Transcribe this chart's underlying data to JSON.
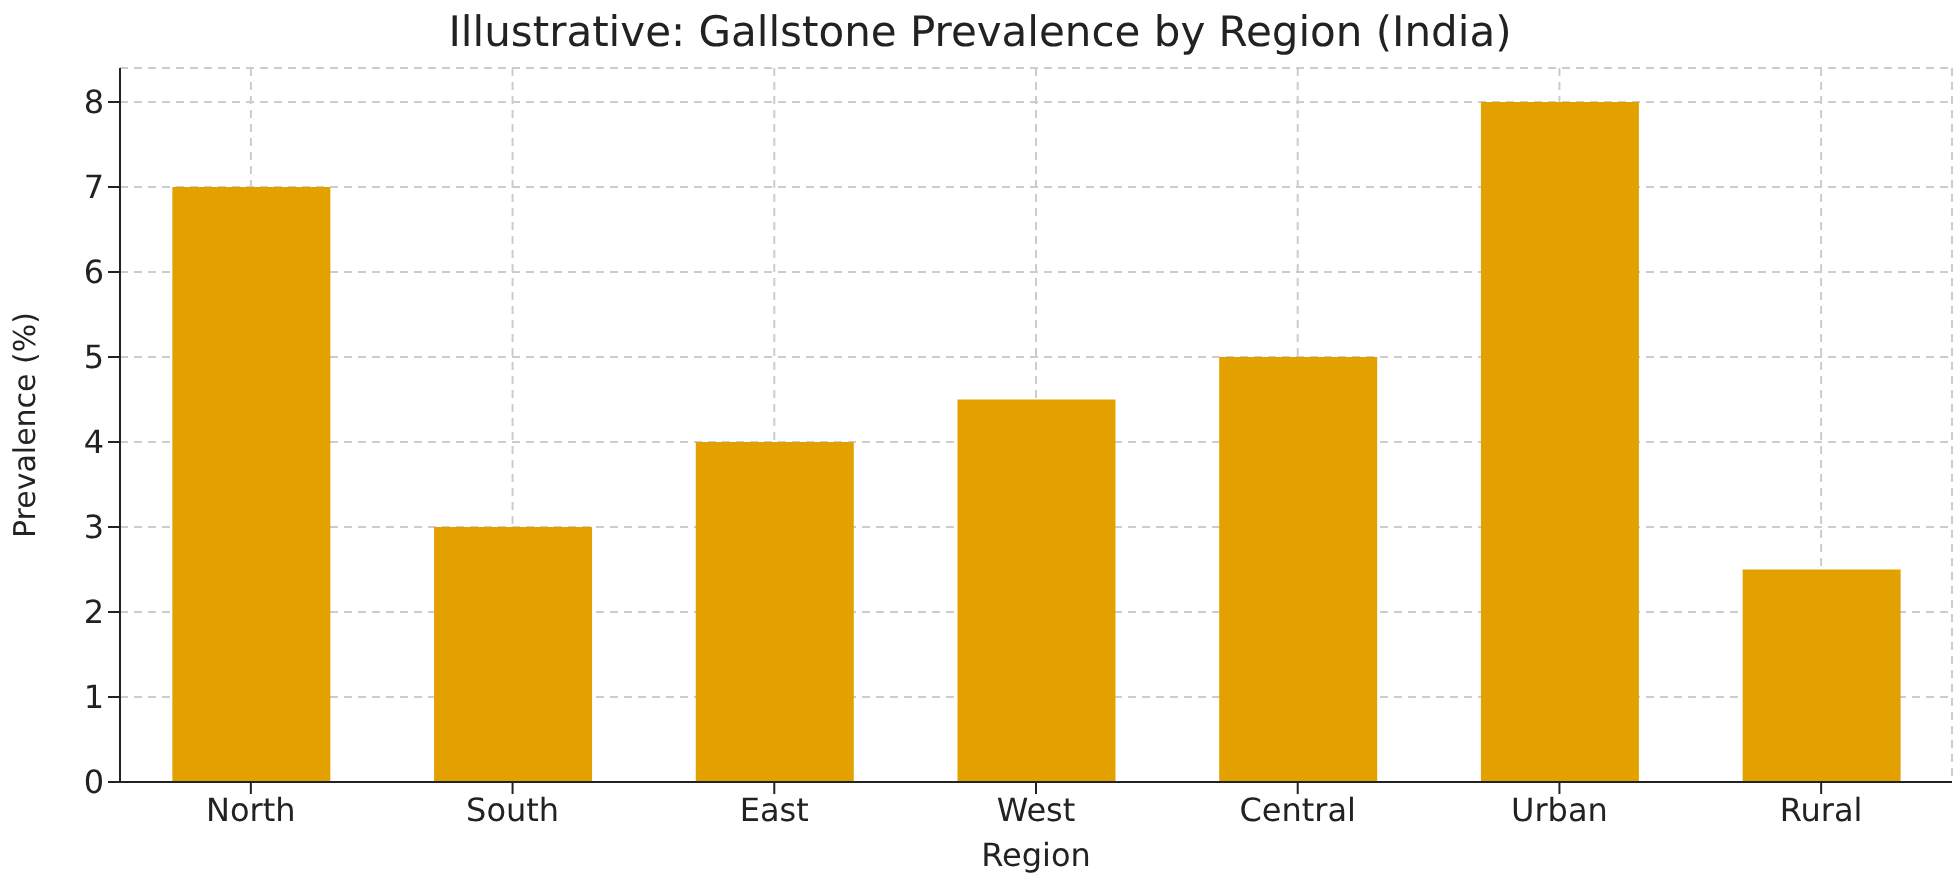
{
  "chart_data": {
    "type": "bar",
    "title": "Illustrative: Gallstone Prevalence by Region (India)",
    "xlabel": "Region",
    "ylabel": "Prevalence (%)",
    "categories": [
      "North",
      "South",
      "East",
      "West",
      "Central",
      "Urban",
      "Rural"
    ],
    "values": [
      7,
      3,
      4,
      4.5,
      5,
      8,
      2.5
    ],
    "color": "#e3a100",
    "ylim": [
      0,
      8.4
    ],
    "yticks": [
      0,
      1,
      2,
      3,
      4,
      5,
      6,
      7,
      8
    ],
    "grid": true
  }
}
